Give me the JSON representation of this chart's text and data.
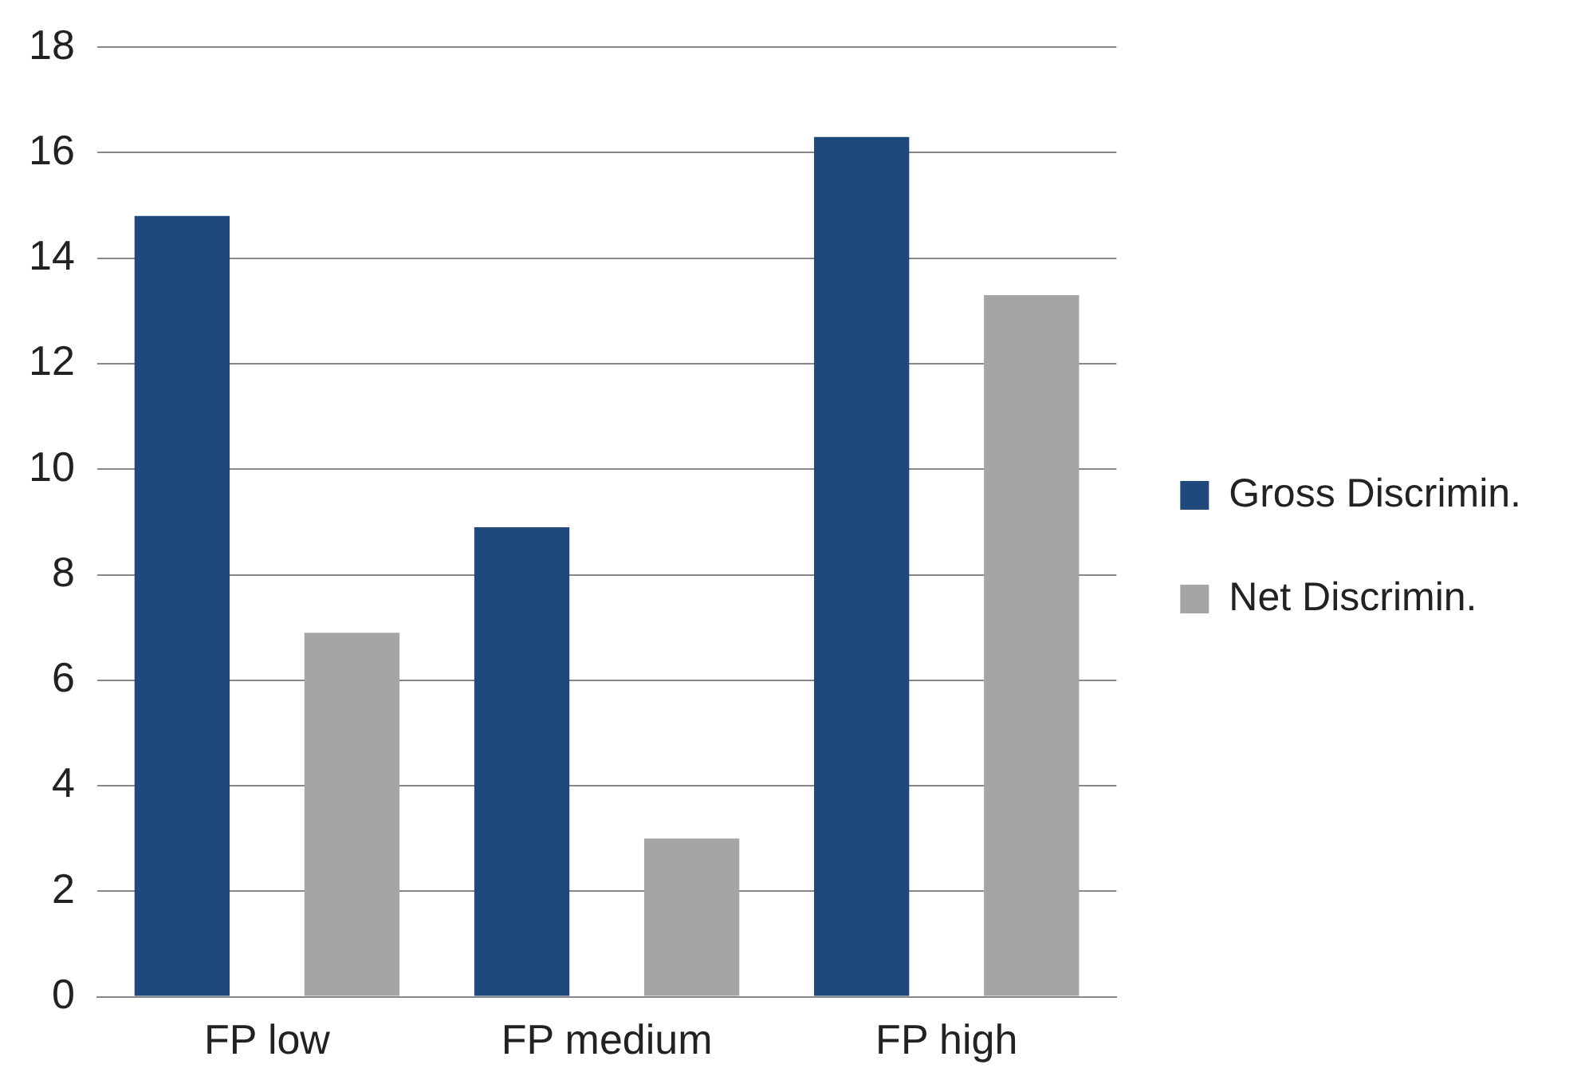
{
  "chart_data": {
    "type": "bar",
    "categories": [
      "FP low",
      "FP medium",
      "FP high"
    ],
    "series": [
      {
        "name": "Gross Discrimin.",
        "color": "#1f497d",
        "values": [
          14.8,
          8.9,
          16.3
        ]
      },
      {
        "name": "Net Discrimin.",
        "color": "#a5a5a5",
        "values": [
          6.9,
          3.0,
          13.3
        ]
      }
    ],
    "ylim": [
      0,
      18
    ],
    "yticks": [
      0,
      2,
      4,
      6,
      8,
      10,
      12,
      14,
      16,
      18
    ],
    "grid": "y",
    "legend": "right"
  }
}
